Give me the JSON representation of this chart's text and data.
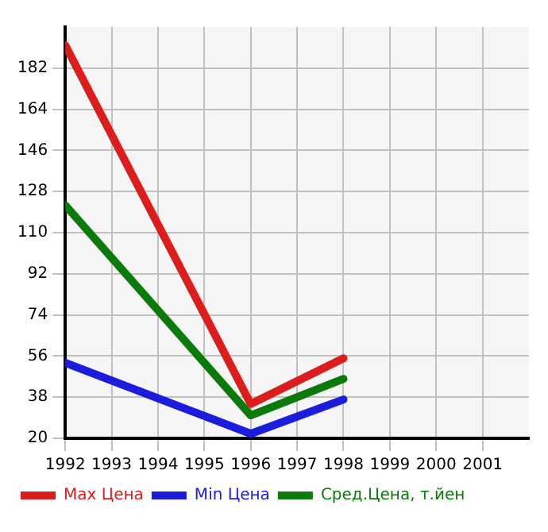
{
  "chart_data": {
    "type": "line",
    "x": [
      1992,
      1996,
      1998
    ],
    "series": [
      {
        "name": "Max Цена",
        "color": "#dd1c1c",
        "values": [
          192,
          35,
          55
        ]
      },
      {
        "name": "Min Цена",
        "color": "#1c1cdd",
        "values": [
          53,
          22,
          37
        ]
      },
      {
        "name": "Сред.Цена, т.йен",
        "color": "#0a7a0a",
        "values": [
          122,
          30,
          46
        ]
      }
    ],
    "xlim": [
      1992,
      2002
    ],
    "xticks": [
      1992,
      1993,
      1994,
      1995,
      1996,
      1997,
      1998,
      1999,
      2000,
      2001
    ],
    "ylim": [
      20,
      200
    ],
    "yticks": [
      20,
      38,
      56,
      74,
      92,
      110,
      128,
      146,
      164,
      182
    ],
    "grid": true,
    "legend": "bottom",
    "marker": "none",
    "line_style": "solid"
  }
}
